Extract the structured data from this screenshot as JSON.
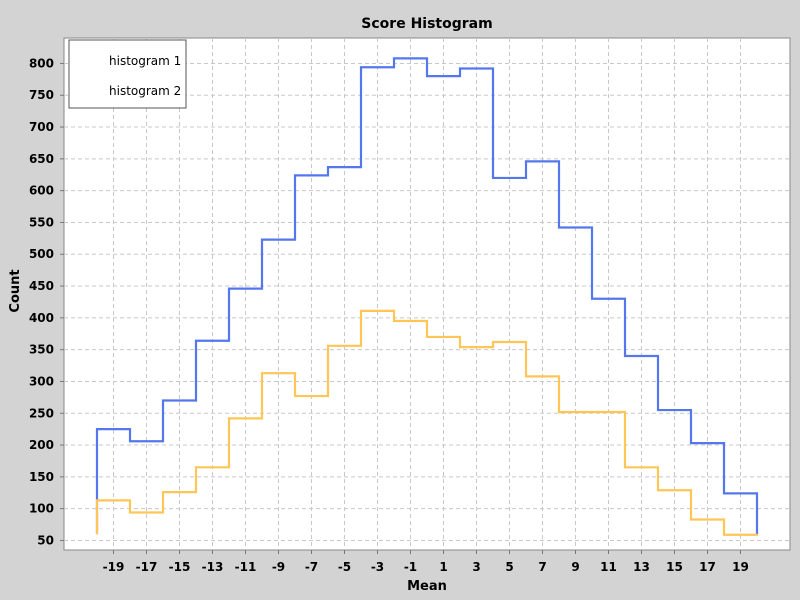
{
  "chart_data": {
    "type": "line",
    "title": "Score Histogram",
    "xlabel": "Mean",
    "ylabel": "Count",
    "xlim": [
      -22,
      22
    ],
    "ylim": [
      35,
      840
    ],
    "xticks": [
      -19,
      -17,
      -15,
      -13,
      -11,
      -9,
      -7,
      -5,
      -3,
      -1,
      1,
      3,
      5,
      7,
      9,
      11,
      13,
      15,
      17,
      19
    ],
    "yticks": [
      50,
      100,
      150,
      200,
      250,
      300,
      350,
      400,
      450,
      500,
      550,
      600,
      650,
      700,
      750,
      800
    ],
    "grid": true,
    "legend_position": "top-left",
    "bin_edges": [
      -20,
      -18,
      -16,
      -14,
      -12,
      -10,
      -8,
      -6,
      -4,
      -2,
      0,
      2,
      4,
      6,
      8,
      10,
      12,
      14,
      16,
      18,
      20
    ],
    "baseline": 60,
    "series": [
      {
        "name": "histogram 1",
        "color": "#5577ee",
        "values": [
          225,
          206,
          270,
          364,
          446,
          523,
          624,
          637,
          794,
          808,
          780,
          792,
          620,
          646,
          542,
          430,
          340,
          255,
          203,
          124
        ]
      },
      {
        "name": "histogram 2",
        "color": "#ffc555",
        "values": [
          113,
          94,
          126,
          165,
          242,
          313,
          277,
          356,
          411,
          395,
          370,
          354,
          362,
          308,
          252,
          252,
          165,
          129,
          83,
          59
        ]
      }
    ]
  }
}
